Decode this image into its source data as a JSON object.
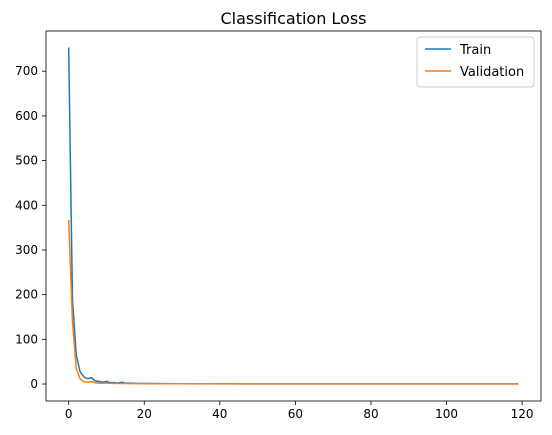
{
  "chart_data": {
    "type": "line",
    "title": "Classification Loss",
    "xlabel": "",
    "ylabel": "",
    "xlim": [
      -6,
      125
    ],
    "ylim": [
      -38,
      790
    ],
    "x_ticks": [
      0,
      20,
      40,
      60,
      80,
      100,
      120
    ],
    "y_ticks": [
      0,
      100,
      200,
      300,
      400,
      500,
      600,
      700
    ],
    "grid": false,
    "legend_position": "top-right",
    "series": [
      {
        "name": "Train",
        "color": "#1f77b4",
        "points": [
          [
            0,
            753
          ],
          [
            1,
            190
          ],
          [
            2,
            65
          ],
          [
            3,
            28
          ],
          [
            4,
            16
          ],
          [
            5,
            12
          ],
          [
            6,
            14
          ],
          [
            7,
            7
          ],
          [
            8,
            6
          ],
          [
            9,
            4
          ],
          [
            10,
            6
          ],
          [
            11,
            3
          ],
          [
            12,
            3
          ],
          [
            13,
            2
          ],
          [
            14,
            4
          ],
          [
            15,
            2
          ],
          [
            16,
            2
          ],
          [
            18,
            1.5
          ],
          [
            20,
            1.2
          ],
          [
            25,
            0.8
          ],
          [
            30,
            0.6
          ],
          [
            40,
            0.5
          ],
          [
            60,
            0.4
          ],
          [
            80,
            0.35
          ],
          [
            100,
            0.3
          ],
          [
            119,
            0.3
          ]
        ]
      },
      {
        "name": "Validation",
        "color": "#ff7f0e",
        "points": [
          [
            0,
            367
          ],
          [
            1,
            140
          ],
          [
            2,
            35
          ],
          [
            3,
            12
          ],
          [
            4,
            5
          ],
          [
            5,
            4
          ],
          [
            6,
            5
          ],
          [
            7,
            3
          ],
          [
            8,
            2
          ],
          [
            9,
            2
          ],
          [
            10,
            2
          ],
          [
            11,
            1.5
          ],
          [
            12,
            1.5
          ],
          [
            14,
            1.2
          ],
          [
            16,
            1
          ],
          [
            18,
            0.9
          ],
          [
            20,
            0.8
          ],
          [
            25,
            0.6
          ],
          [
            30,
            0.5
          ],
          [
            40,
            0.4
          ],
          [
            60,
            0.3
          ],
          [
            80,
            0.3
          ],
          [
            100,
            0.25
          ],
          [
            119,
            0.25
          ]
        ]
      }
    ]
  }
}
